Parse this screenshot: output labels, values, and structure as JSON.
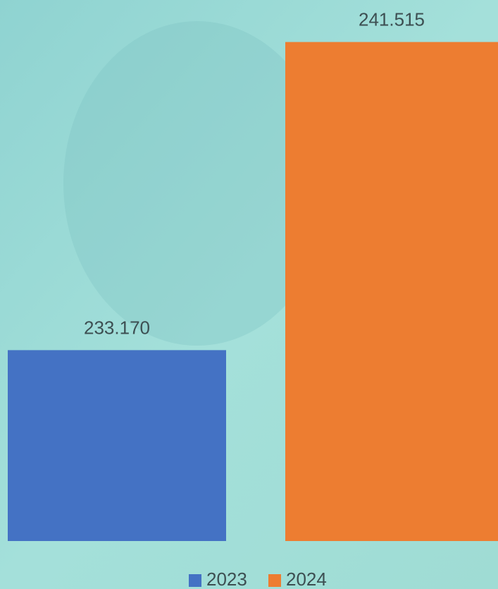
{
  "chart_data": {
    "type": "bar",
    "categories": [
      null
    ],
    "series": [
      {
        "name": "2023",
        "color": "#4472c4",
        "values": [
          233170
        ],
        "value_labels": [
          "233.170"
        ]
      },
      {
        "name": "2024",
        "color": "#ed7d31",
        "values": [
          241515
        ],
        "value_labels": [
          "241.515"
        ]
      }
    ],
    "ylim": [
      228000,
      242500
    ],
    "legend": "bottom"
  }
}
